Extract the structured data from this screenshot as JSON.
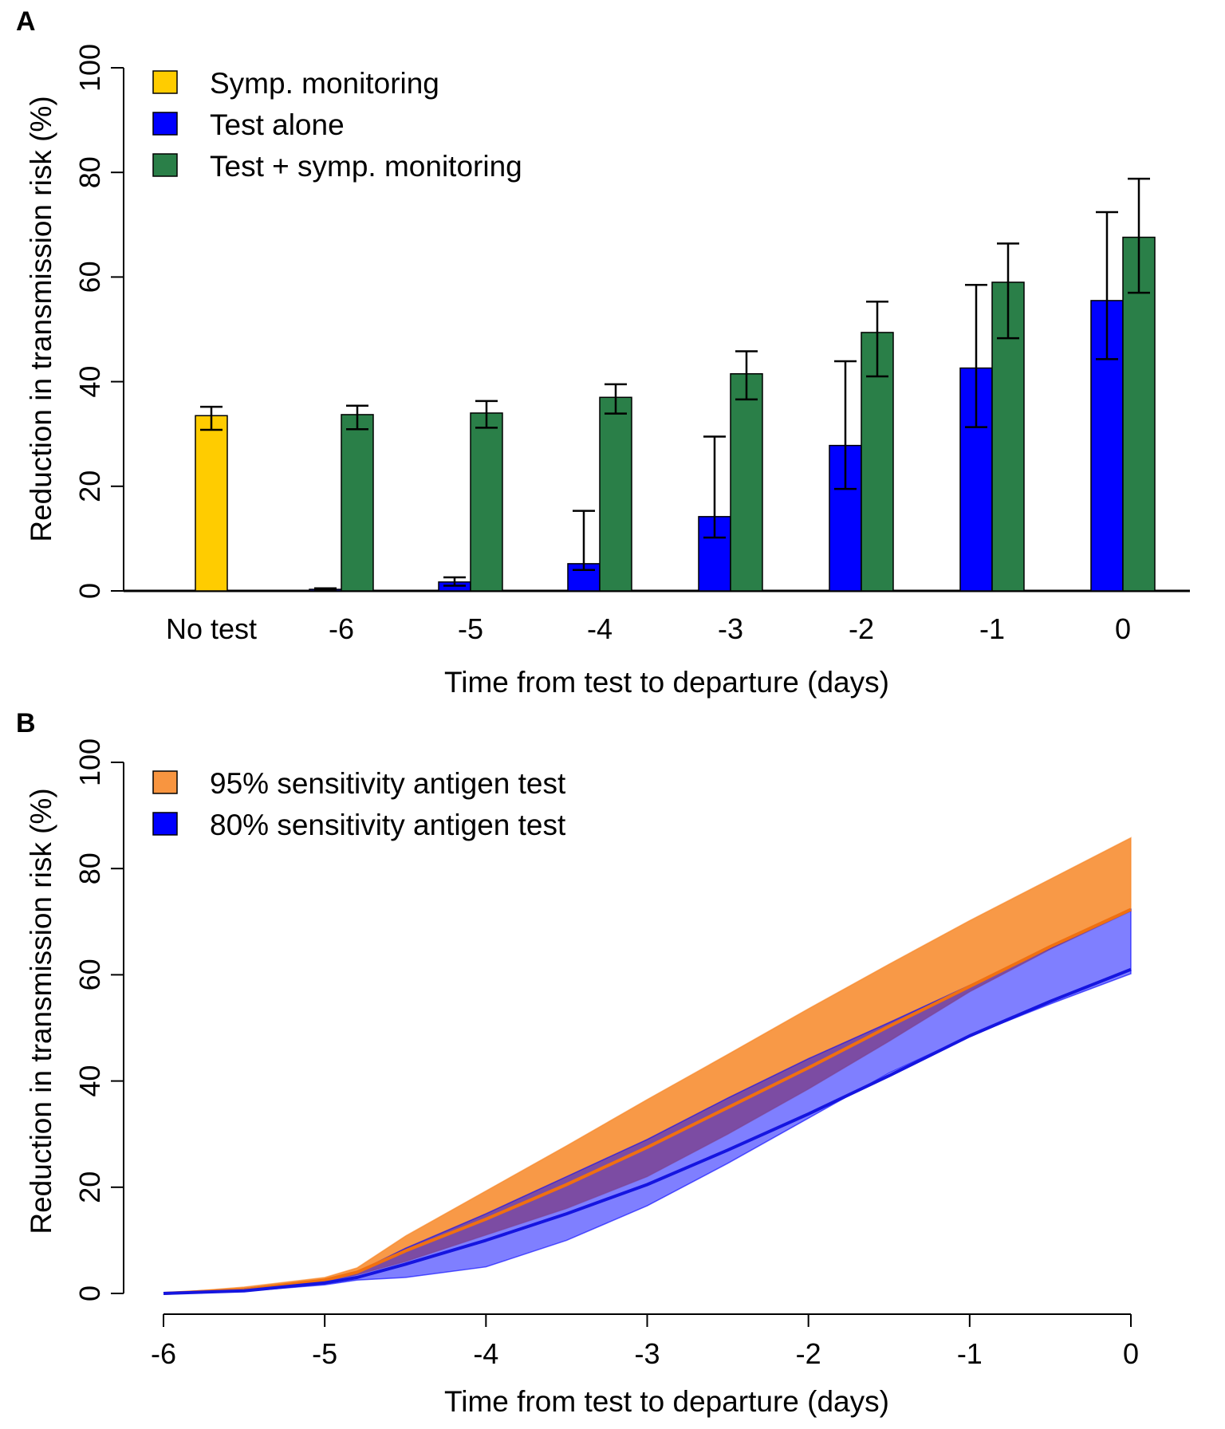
{
  "chart_data": [
    {
      "panel_label": "A",
      "type": "bar",
      "xlabel": "Time from test to departure (days)",
      "ylabel": "Reduction in transmission risk (%)",
      "ylim": [
        0,
        100
      ],
      "yticks": [
        "0",
        "20",
        "40",
        "60",
        "80",
        "100"
      ],
      "categories": [
        "No test",
        "-6",
        "-5",
        "-4",
        "-3",
        "-2",
        "-1",
        "0"
      ],
      "legend_position": "top-left",
      "series": [
        {
          "name": "Symp. monitoring",
          "color": "#FFCC00",
          "values": [
            33.5,
            null,
            null,
            null,
            null,
            null,
            null,
            null
          ],
          "lower": [
            30.8,
            null,
            null,
            null,
            null,
            null,
            null,
            null
          ],
          "upper": [
            35.2,
            null,
            null,
            null,
            null,
            null,
            null,
            null
          ]
        },
        {
          "name": "Test alone",
          "color": "#0000FF",
          "values": [
            null,
            0.3,
            1.7,
            5.2,
            14.2,
            27.8,
            42.6,
            55.5
          ],
          "lower": [
            null,
            0.1,
            1.0,
            4.0,
            10.2,
            19.5,
            31.3,
            44.3
          ],
          "upper": [
            null,
            0.5,
            2.6,
            15.3,
            29.5,
            43.9,
            58.5,
            72.4
          ]
        },
        {
          "name": "Test + symp. monitoring",
          "color": "#2A7F48",
          "values": [
            null,
            33.7,
            34.0,
            37.0,
            41.5,
            49.4,
            59.0,
            67.6
          ],
          "lower": [
            null,
            30.9,
            31.2,
            33.9,
            36.6,
            41.0,
            48.3,
            57.0
          ],
          "upper": [
            null,
            35.4,
            36.3,
            39.5,
            45.8,
            55.3,
            66.4,
            78.8
          ]
        }
      ]
    },
    {
      "panel_label": "B",
      "type": "area",
      "xlabel": "Time from test to departure (days)",
      "ylabel": "Reduction in transmission risk (%)",
      "xlim": [
        -6,
        0
      ],
      "ylim": [
        0,
        100
      ],
      "xticks": [
        "-6",
        "-5",
        "-4",
        "-3",
        "-2",
        "-1",
        "0"
      ],
      "yticks": [
        "0",
        "20",
        "40",
        "60",
        "80",
        "100"
      ],
      "legend_position": "top-left",
      "x": [
        -6,
        -5.5,
        -5,
        -4.8,
        -4.5,
        -4,
        -3.5,
        -3,
        -2.5,
        -2,
        -1.5,
        -1,
        -0.5,
        0
      ],
      "series": [
        {
          "name": "95% sensitivity antigen test",
          "color": "#F7821F",
          "line_color": "#F07010",
          "values": [
            0,
            0.7,
            2.5,
            4.0,
            8.0,
            14.0,
            20.5,
            27.5,
            35.0,
            42.5,
            50.3,
            57.8,
            65.3,
            72.3
          ],
          "lower": [
            0,
            0.6,
            2.3,
            3.5,
            6.0,
            11.0,
            16.0,
            22.0,
            30.0,
            38.5,
            47.5,
            56.8,
            64.8,
            72.0
          ],
          "upper": [
            0,
            1.2,
            3.0,
            4.8,
            10.8,
            19.3,
            27.8,
            36.5,
            45.0,
            53.6,
            62.0,
            70.2,
            78.0,
            85.8
          ]
        },
        {
          "name": "80% sensitivity antigen test",
          "color": "#0000FF",
          "line_color": "#1515E0",
          "values": [
            0,
            0.5,
            2.0,
            3.0,
            5.5,
            10.0,
            15.0,
            20.5,
            27.0,
            33.8,
            41.0,
            48.5,
            55.0,
            61.0
          ],
          "lower": [
            0,
            0.4,
            1.6,
            2.5,
            3.0,
            5.0,
            10.0,
            16.5,
            24.5,
            33.0,
            41.5,
            48.5,
            54.5,
            60.2
          ],
          "upper": [
            0,
            0.9,
            2.6,
            4.0,
            8.5,
            15.0,
            22.0,
            29.0,
            36.8,
            44.2,
            51.0,
            58.0,
            65.0,
            72.3
          ]
        }
      ]
    }
  ]
}
